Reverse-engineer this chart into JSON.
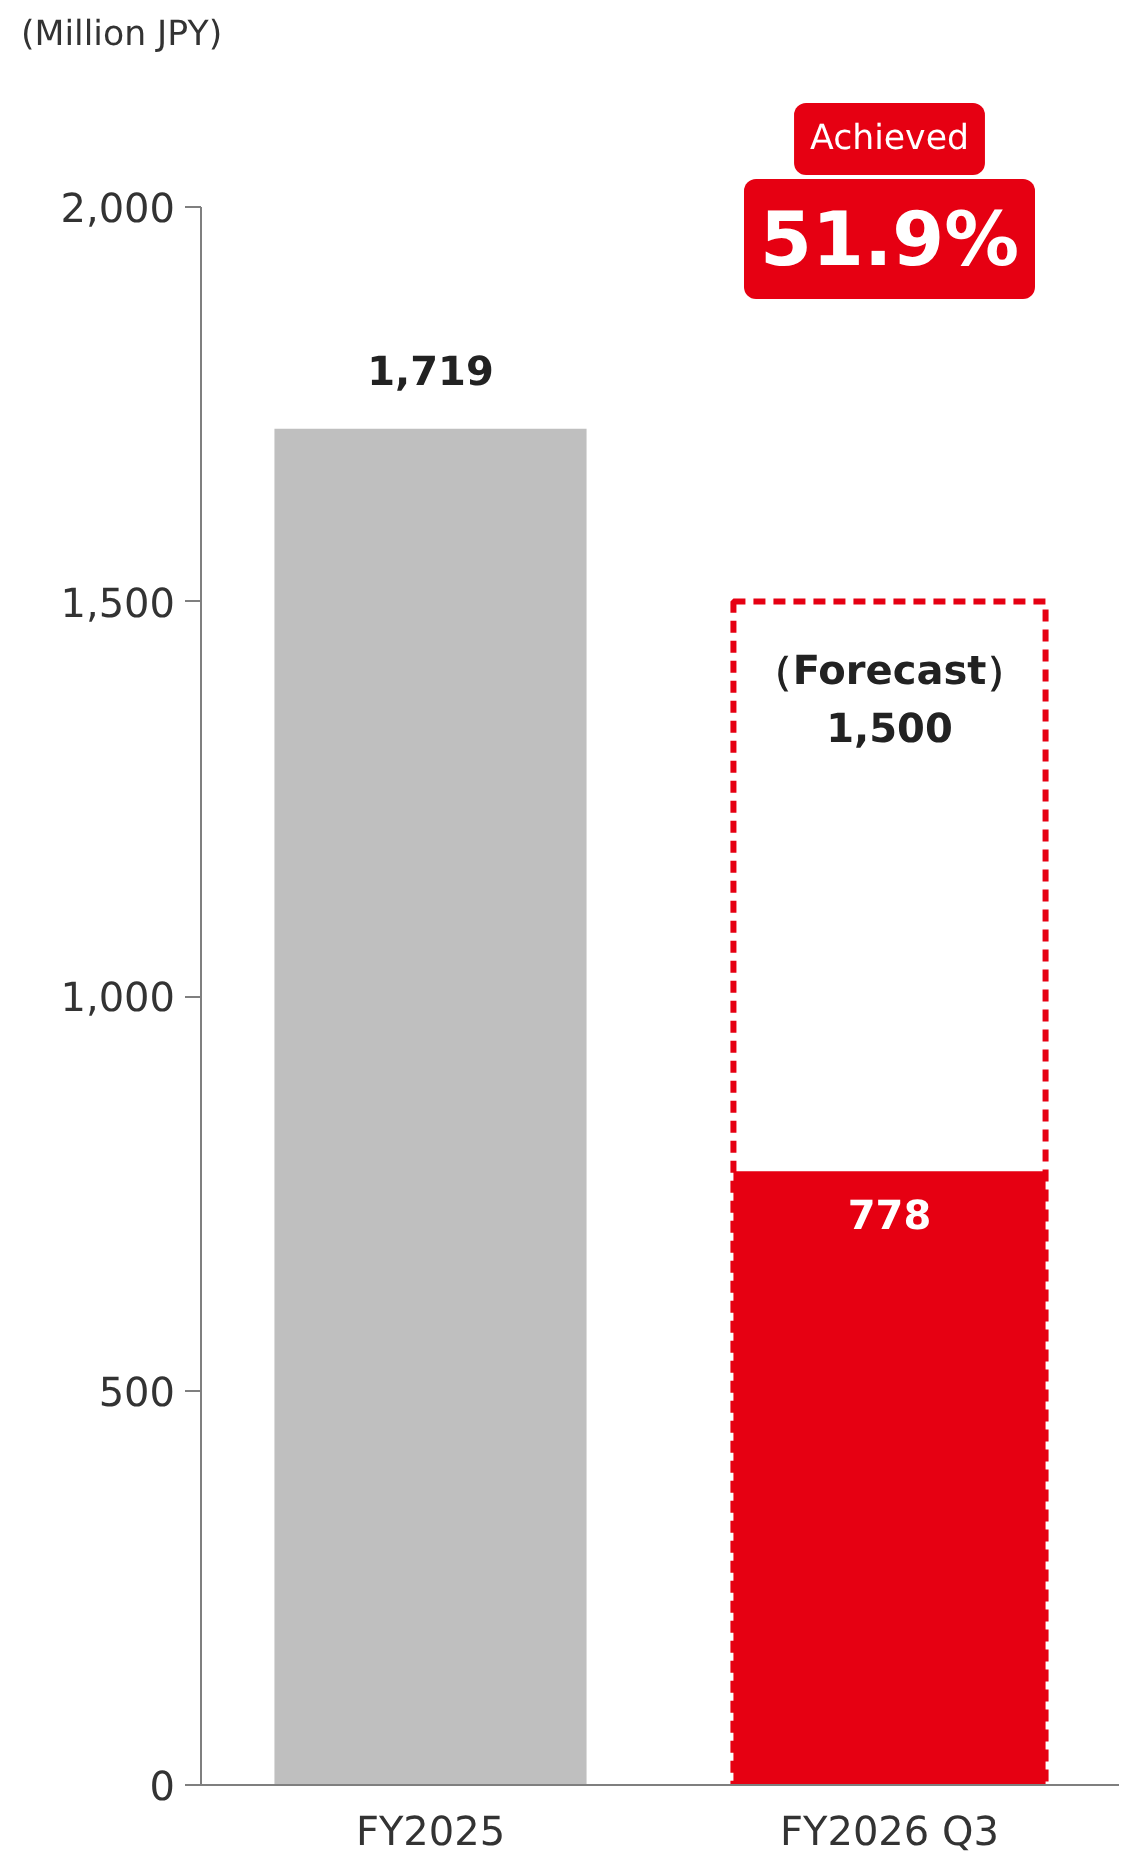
{
  "chart_data": {
    "type": "bar",
    "ylabel": "(Million JPY)",
    "categories": [
      "FY2025",
      "FY2026 Q3"
    ],
    "stacked": false,
    "series": [
      {
        "name": "（Forecast）",
        "color": "#e60012",
        "line_style": "dashed",
        "values": [
          null,
          1500
        ],
        "value_labels": [
          null,
          "1,500"
        ]
      },
      {
        "colors": [
          "#bfbfbf",
          "#e60012"
        ],
        "values": [
          1719,
          778
        ],
        "value_labels": [
          "1,719",
          "778"
        ]
      }
    ],
    "ylim": [
      0,
      2000
    ],
    "yticks": [
      0,
      500,
      {
        "value": 1000,
        "label": "1,000"
      },
      {
        "value": 1500,
        "label": "1,500"
      },
      {
        "value": 2000,
        "label": "2,000"
      }
    ],
    "grid": false,
    "annotations": [
      "Achieved",
      "51.9%"
    ]
  }
}
